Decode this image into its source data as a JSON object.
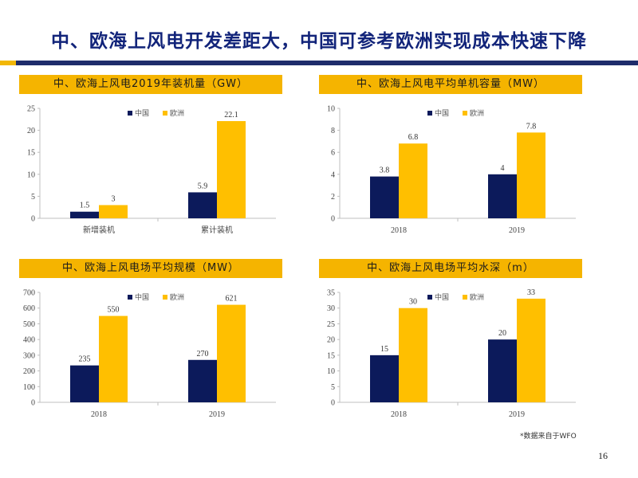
{
  "page": {
    "title": "中、欧海上风电开发差距大，中国可参考欧洲实现成本快速下降",
    "footnote": "*数据来自于WFO",
    "page_number": "16"
  },
  "colors": {
    "china": "#0c1a5b",
    "europe": "#ffbf00",
    "header_bg": "#f5b400",
    "title": "#12247a",
    "axis": "#bfbfbf"
  },
  "chart_data": [
    {
      "type": "bar",
      "title": "中、欧海上风电2019年装机量（GW）",
      "categories": [
        "新增装机",
        "累计装机"
      ],
      "series": [
        {
          "name": "中国",
          "values": [
            1.5,
            5.9
          ]
        },
        {
          "name": "欧洲",
          "values": [
            3,
            22.1
          ]
        }
      ],
      "ylim": [
        0,
        25
      ],
      "yticks": [
        0,
        5,
        10,
        15,
        20,
        25
      ],
      "legend": "top-left"
    },
    {
      "type": "bar",
      "title": "中、欧海上风电平均单机容量（MW）",
      "categories": [
        "2018",
        "2019"
      ],
      "series": [
        {
          "name": "中国",
          "values": [
            3.8,
            4
          ]
        },
        {
          "name": "欧洲",
          "values": [
            6.8,
            7.8
          ]
        }
      ],
      "ylim": [
        0,
        10
      ],
      "yticks": [
        0,
        2,
        4,
        6,
        8,
        10
      ],
      "legend": "top-left"
    },
    {
      "type": "bar",
      "title": "中、欧海上风电场平均规模（MW）",
      "categories": [
        "2018",
        "2019"
      ],
      "series": [
        {
          "name": "中国",
          "values": [
            235,
            270
          ]
        },
        {
          "name": "欧洲",
          "values": [
            550,
            621
          ]
        }
      ],
      "ylim": [
        0,
        700
      ],
      "yticks": [
        0,
        100,
        200,
        300,
        400,
        500,
        600,
        700
      ],
      "legend": "top-left"
    },
    {
      "type": "bar",
      "title": "中、欧海上风电场平均水深（m）",
      "categories": [
        "2018",
        "2019"
      ],
      "series": [
        {
          "name": "中国",
          "values": [
            15,
            20
          ]
        },
        {
          "name": "欧洲",
          "values": [
            30,
            33
          ]
        }
      ],
      "ylim": [
        0,
        35
      ],
      "yticks": [
        0,
        5,
        10,
        15,
        20,
        25,
        30,
        35
      ],
      "legend": "top-left"
    }
  ]
}
